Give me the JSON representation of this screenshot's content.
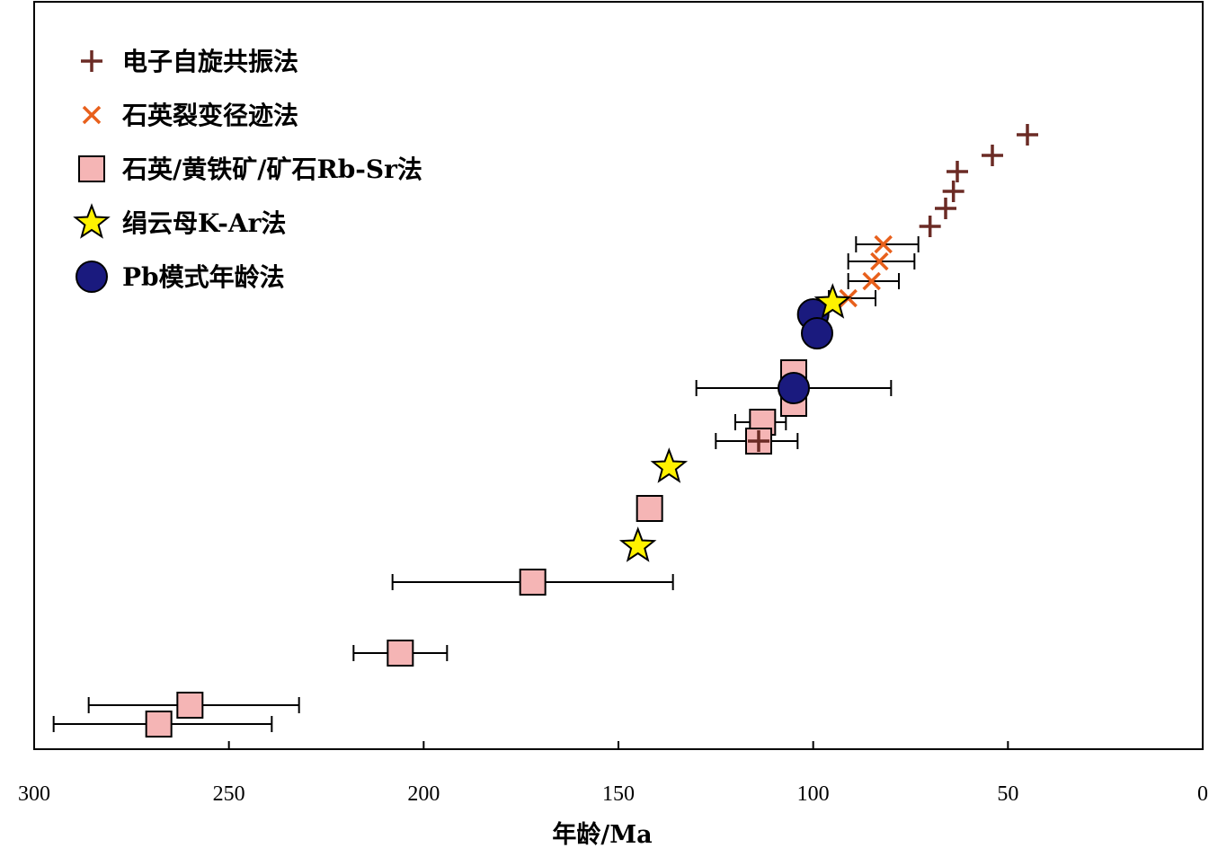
{
  "chart_data": {
    "type": "scatter",
    "xlabel": "年龄/Ma",
    "ylabel": "",
    "xlim": [
      300,
      0
    ],
    "x_reversed": true,
    "x_ticks": [
      300,
      250,
      200,
      150,
      100,
      50,
      0
    ],
    "y_axis": "none (samples ordered by age, no scale)",
    "grid": false,
    "legend_position": "top-left",
    "series": [
      {
        "name": "电子自旋共振法",
        "marker": "plus",
        "color": "#6b2b25",
        "points": [
          {
            "x": 45,
            "y": 150
          },
          {
            "x": 54,
            "y": 173
          },
          {
            "x": 63,
            "y": 191
          },
          {
            "x": 64,
            "y": 213
          },
          {
            "x": 66,
            "y": 232
          },
          {
            "x": 70,
            "y": 252
          },
          {
            "x": 114,
            "y": 491
          }
        ]
      },
      {
        "name": "石英裂变径迹法",
        "marker": "x",
        "color": "#e8601c",
        "points": [
          {
            "x": 82,
            "y": 272,
            "xerr": [
              73,
              89
            ]
          },
          {
            "x": 83,
            "y": 291,
            "xerr": [
              74,
              91
            ]
          },
          {
            "x": 85,
            "y": 313,
            "xerr": [
              78,
              91
            ]
          },
          {
            "x": 91,
            "y": 332,
            "xerr": [
              84,
              96
            ]
          }
        ]
      },
      {
        "name": "石英/黄铁矿/矿石Rb-Sr法",
        "marker": "square",
        "color": "#f5b5b5",
        "points": [
          {
            "x": 105,
            "y": 415
          },
          {
            "x": 105,
            "y": 449
          },
          {
            "x": 113,
            "y": 470,
            "xerr": [
              107,
              120
            ]
          },
          {
            "x": 114,
            "y": 491,
            "xerr": [
              104,
              125
            ]
          },
          {
            "x": 142,
            "y": 566
          },
          {
            "x": 172,
            "y": 648,
            "xerr": [
              136,
              208
            ]
          },
          {
            "x": 206,
            "y": 727,
            "xerr": [
              194,
              218
            ]
          },
          {
            "x": 260,
            "y": 785,
            "xerr": [
              232,
              286
            ]
          },
          {
            "x": 268,
            "y": 806,
            "xerr": [
              239,
              295
            ]
          }
        ]
      },
      {
        "name": "绢云母K-Ar法",
        "marker": "star",
        "color": "#fff200",
        "points": [
          {
            "x": 95,
            "y": 337
          },
          {
            "x": 137,
            "y": 520
          },
          {
            "x": 145,
            "y": 608
          }
        ]
      },
      {
        "name": "Pb模式年龄法",
        "marker": "circle",
        "color": "#1a1a7e",
        "points": [
          {
            "x": 100,
            "y": 350
          },
          {
            "x": 99,
            "y": 371
          },
          {
            "x": 105,
            "y": 432,
            "xerr": [
              80,
              130
            ]
          }
        ]
      }
    ]
  }
}
